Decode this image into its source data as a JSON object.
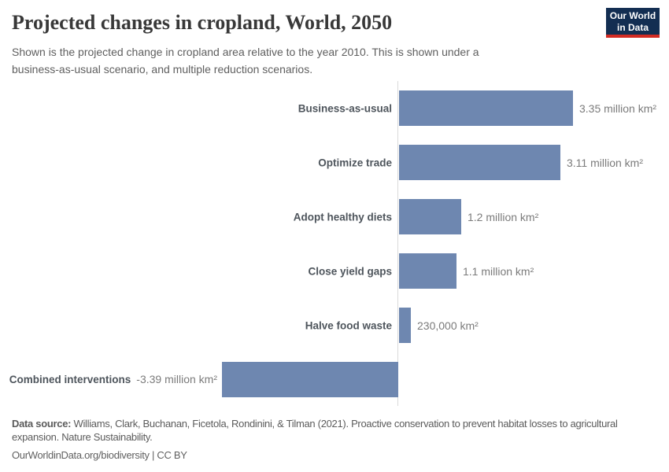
{
  "header": {
    "title": "Projected changes in cropland, World, 2050",
    "subtitle_line1": "Shown is the projected change in cropland area relative to the year 2010. This is shown under a",
    "subtitle_line2": "business-as-usual scenario, and multiple reduction scenarios.",
    "logo": {
      "line1": "Our World",
      "line2": "in Data",
      "bg_color": "#132e52",
      "accent_color": "#d22b23"
    }
  },
  "chart_data": {
    "type": "bar",
    "orientation": "horizontal",
    "title": "Projected changes in cropland, World, 2050",
    "unit": "million km²",
    "categories": [
      "Business-as-usual",
      "Optimize trade",
      "Adopt healthy diets",
      "Close yield gaps",
      "Halve food waste",
      "Combined interventions"
    ],
    "values_million_km2": [
      3.35,
      3.11,
      1.2,
      1.1,
      0.23,
      -3.39
    ],
    "value_labels": [
      "3.35 million km²",
      "3.11 million km²",
      "1.2 million km²",
      "1.1 million km²",
      "230,000 km²",
      "-3.39 million km²"
    ],
    "bar_color": "#6e87b0",
    "axis_color": "#dadada",
    "xlim_million_km2": [
      -3.39,
      3.35
    ],
    "grid": false,
    "legend": false
  },
  "footer": {
    "data_source_label": "Data source:",
    "data_source_line1": "Williams, Clark, Buchanan, Ficetola, Rondinini, & Tilman (2021). Proactive conservation to prevent habitat losses to agricultural",
    "data_source_line2": "expansion. Nature Sustainability.",
    "citation_link": "OurWorldinData.org/biodiversity",
    "citation_separator": "|",
    "citation_license": "CC BY"
  }
}
